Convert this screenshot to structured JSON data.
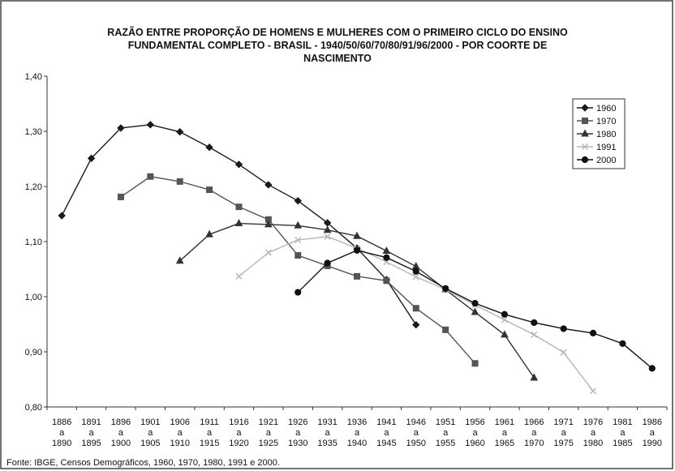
{
  "chart_data": {
    "type": "line",
    "title_lines": [
      "RAZÃO ENTRE PROPORÇÃO DE HOMENS E MULHERES COM O PRIMEIRO CICLO DO ENSINO",
      "FUNDAMENTAL  COMPLETO  - BRASIL - 1940/50/60/70/80/91/96/2000 - POR COORTE DE",
      "NASCIMENTO"
    ],
    "source": "Fonte: IBGE, Censos Demográficos, 1960, 1970, 1980, 1991 e 2000.",
    "categories": [
      "1886 a 1890",
      "1891 a 1895",
      "1896 a 1900",
      "1901 a 1905",
      "1906 a 1910",
      "1911 a 1915",
      "1916 a 1920",
      "1921 a 1925",
      "1926 a 1930",
      "1931 a 1935",
      "1936 a 1940",
      "1941 a 1945",
      "1946 a 1950",
      "1951 a 1955",
      "1956 a 1960",
      "1961 a 1965",
      "1966 a 1970",
      "1971 a 1975",
      "1976 a 1980",
      "1981 a 1985",
      "1986 a 1990"
    ],
    "series": [
      {
        "name": "1960",
        "color": "#1a1a1a",
        "marker": "diamond",
        "values": [
          1.147,
          1.251,
          1.306,
          1.312,
          1.299,
          1.271,
          1.24,
          1.203,
          1.174,
          1.134,
          1.088,
          1.031,
          0.949,
          null,
          null,
          null,
          null,
          null,
          null,
          null,
          null
        ]
      },
      {
        "name": "1970",
        "color": "#555555",
        "marker": "square",
        "values": [
          null,
          null,
          1.181,
          1.218,
          1.209,
          1.194,
          1.163,
          1.14,
          1.075,
          1.056,
          1.037,
          1.029,
          0.979,
          0.94,
          0.879,
          null,
          null,
          null,
          null,
          null,
          null
        ]
      },
      {
        "name": "1980",
        "color": "#333333",
        "marker": "triangle",
        "values": [
          null,
          null,
          null,
          null,
          1.065,
          1.113,
          1.133,
          1.131,
          1.129,
          1.121,
          1.11,
          1.083,
          1.055,
          1.013,
          0.972,
          0.931,
          0.853,
          null,
          null,
          null,
          null
        ]
      },
      {
        "name": "1991",
        "color": "#b5b5b5",
        "marker": "x",
        "values": [
          null,
          null,
          null,
          null,
          null,
          null,
          1.037,
          1.08,
          1.103,
          1.109,
          1.088,
          1.063,
          1.036,
          1.013,
          0.985,
          0.958,
          0.931,
          0.899,
          0.829,
          null,
          null
        ]
      },
      {
        "name": "2000",
        "color": "#111111",
        "marker": "circle",
        "values": [
          null,
          null,
          null,
          null,
          null,
          null,
          null,
          null,
          1.008,
          1.061,
          1.084,
          1.071,
          1.046,
          1.015,
          0.988,
          0.968,
          0.953,
          0.942,
          0.934,
          0.915,
          0.87
        ]
      }
    ],
    "ylim": [
      0.8,
      1.4
    ],
    "yticks": [
      {
        "value": 0.8,
        "label": "0,80"
      },
      {
        "value": 0.9,
        "label": "0,90"
      },
      {
        "value": 1.0,
        "label": "1,00"
      },
      {
        "value": 1.1,
        "label": "1,10"
      },
      {
        "value": 1.2,
        "label": "1,20"
      },
      {
        "value": 1.3,
        "label": "1,30"
      },
      {
        "value": 1.4,
        "label": "1,40"
      }
    ],
    "legend": "top-right"
  }
}
